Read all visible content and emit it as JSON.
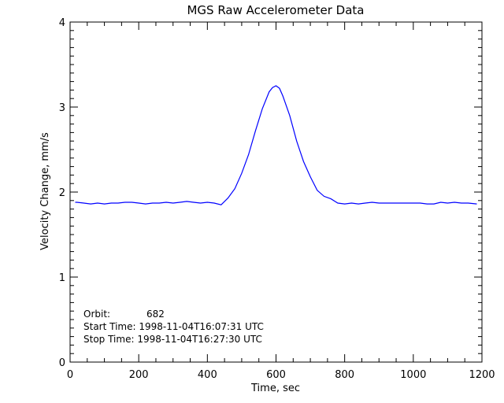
{
  "chart_data": {
    "type": "line",
    "title": "MGS Raw Accelerometer Data",
    "xlabel": "Time, sec",
    "ylabel": "Velocity Change, mm/s",
    "xlim": [
      0,
      1200
    ],
    "ylim": [
      0,
      4
    ],
    "xticks": [
      0,
      200,
      400,
      600,
      800,
      1000,
      1200
    ],
    "yticks": [
      0,
      1,
      2,
      3,
      4
    ],
    "x_minor_step": 50,
    "y_minor_step": 0.1,
    "grid": false,
    "line_color": "#0000ff",
    "series": [
      {
        "x": [
          15,
          20,
          40,
          60,
          80,
          100,
          120,
          140,
          160,
          180,
          200,
          220,
          240,
          260,
          280,
          300,
          320,
          340,
          360,
          380,
          400,
          420,
          440,
          460,
          480,
          500,
          520,
          540,
          560,
          580,
          590,
          600,
          610,
          620,
          640,
          660,
          680,
          700,
          720,
          740,
          760,
          780,
          800,
          820,
          840,
          860,
          880,
          900,
          920,
          940,
          960,
          980,
          1000,
          1020,
          1040,
          1060,
          1080,
          1100,
          1120,
          1140,
          1160,
          1185
        ],
        "y": [
          1.88,
          1.88,
          1.87,
          1.86,
          1.87,
          1.86,
          1.87,
          1.87,
          1.88,
          1.88,
          1.87,
          1.86,
          1.87,
          1.87,
          1.88,
          1.87,
          1.88,
          1.89,
          1.88,
          1.87,
          1.88,
          1.87,
          1.85,
          1.93,
          2.04,
          2.22,
          2.44,
          2.72,
          2.98,
          3.18,
          3.23,
          3.25,
          3.22,
          3.13,
          2.9,
          2.6,
          2.36,
          2.18,
          2.02,
          1.95,
          1.92,
          1.87,
          1.86,
          1.87,
          1.86,
          1.87,
          1.88,
          1.87,
          1.87,
          1.87,
          1.87,
          1.87,
          1.87,
          1.87,
          1.86,
          1.86,
          1.88,
          1.87,
          1.88,
          1.87,
          1.87,
          1.86
        ]
      }
    ],
    "annotations": {
      "orbit_label": "Orbit:",
      "orbit_value": "682",
      "start": "Start Time: 1998-11-04T16:07:31 UTC",
      "stop": "Stop Time: 1998-11-04T16:27:30 UTC"
    }
  }
}
